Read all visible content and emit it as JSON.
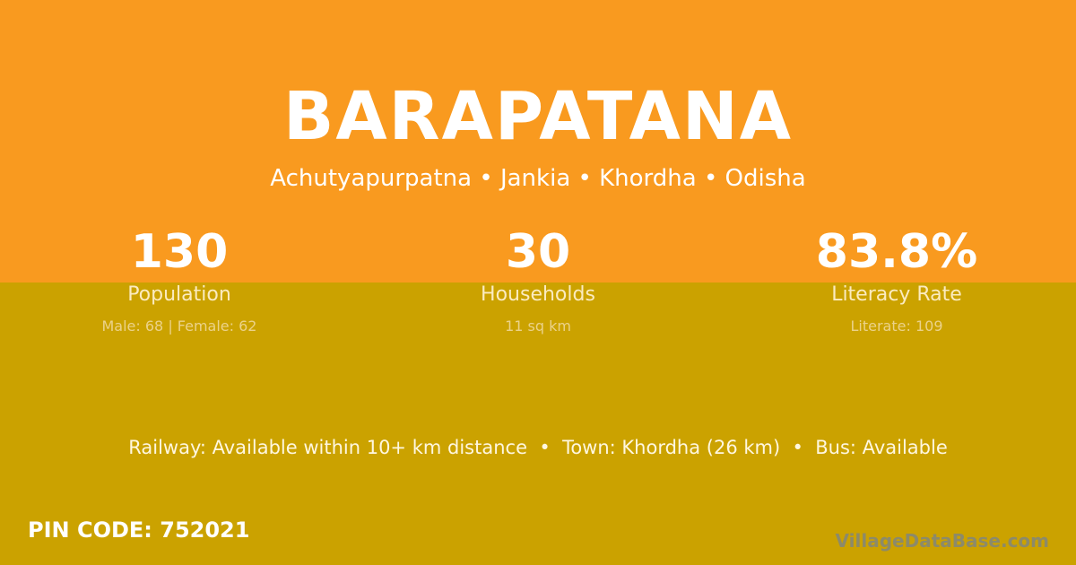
{
  "colors": {
    "top_band": "#F99A1F",
    "bottom_band": "#CBA200",
    "watermark": "#8C8A6A"
  },
  "village": {
    "name": "BARAPATANA",
    "breadcrumb": "Achutyapurpatna • Jankia • Khordha • Odisha"
  },
  "stats": [
    {
      "value": "130",
      "label": "Population",
      "detail": "Male: 68 | Female: 62"
    },
    {
      "value": "30",
      "label": "Households",
      "detail": "11 sq km"
    },
    {
      "value": "83.8%",
      "label": "Literacy Rate",
      "detail": "Literate: 109"
    }
  ],
  "connectivity": "Railway: Available within 10+ km distance  •  Town: Khordha (26 km)  •  Bus: Available",
  "pin_code": "PIN CODE: 752021",
  "watermark": "VillageDataBase.com"
}
